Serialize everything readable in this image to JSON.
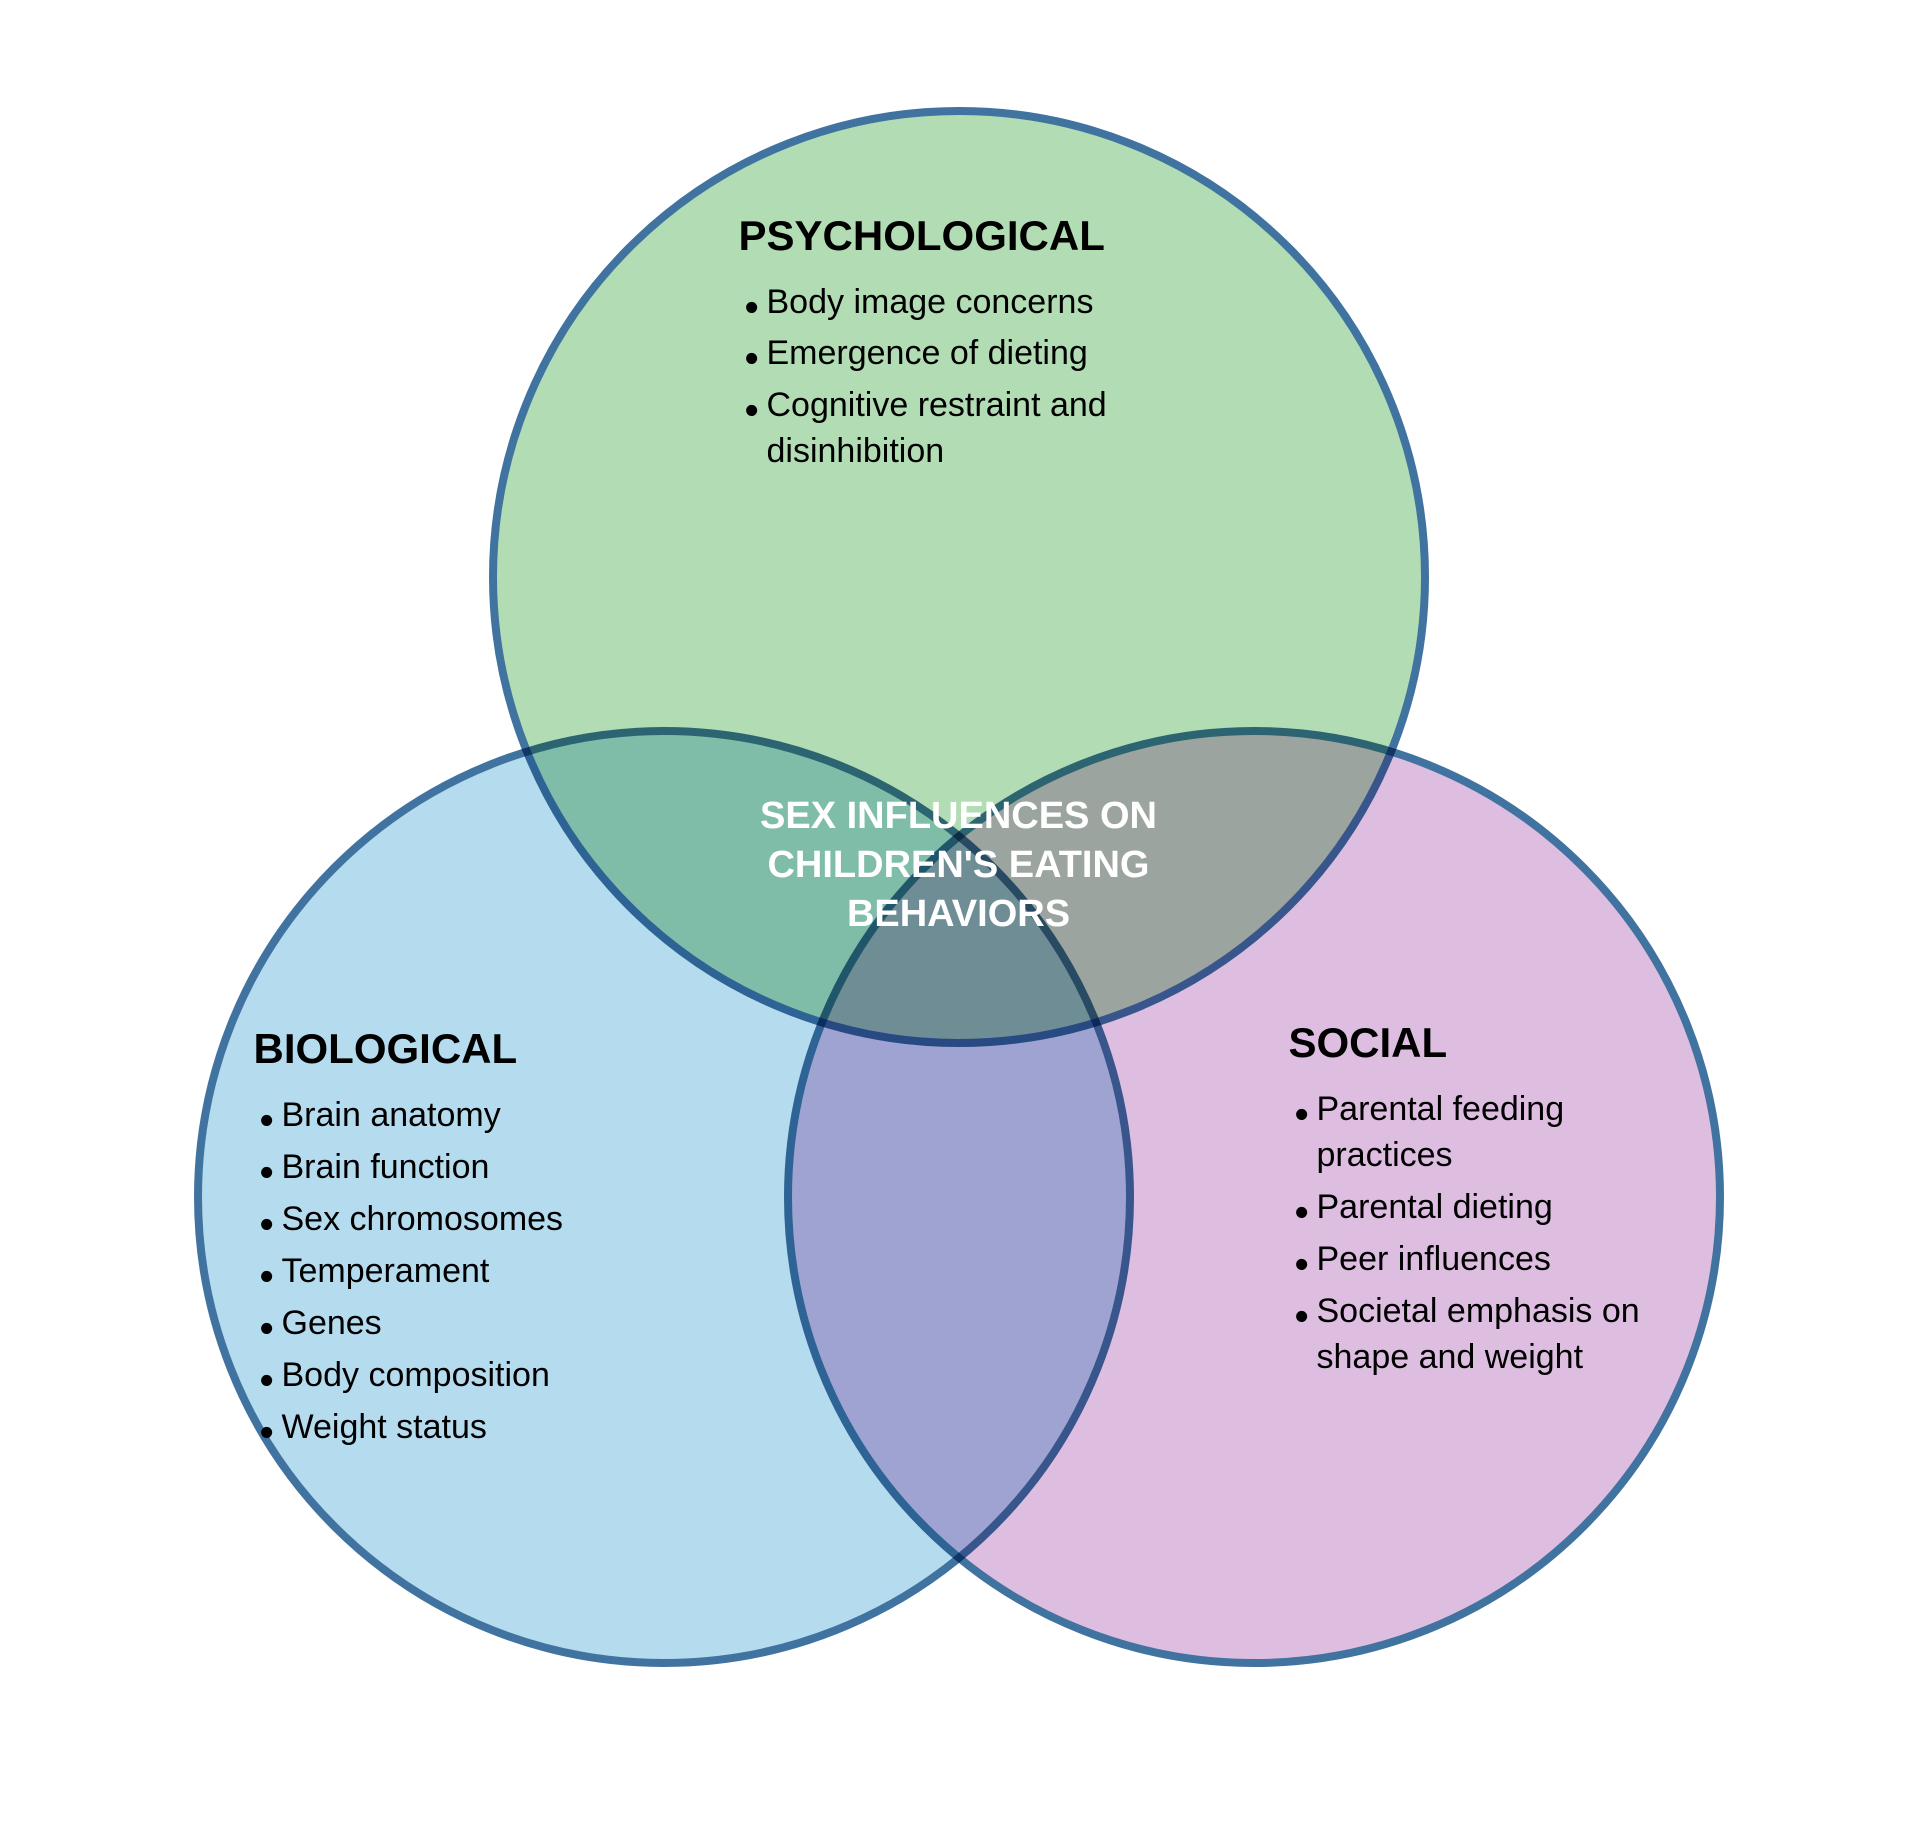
{
  "diagram": {
    "type": "venn-3",
    "background_color": "#ffffff",
    "circle_radius": 470,
    "circle_border_width": 8,
    "circle_border_color": "#1e5a8e",
    "circle_opacity": 0.85,
    "circles": {
      "top": {
        "fill_color": "#a5d6a7",
        "title": "PSYCHOLOGICAL",
        "items": [
          "Body image concerns",
          "Emergence of dieting",
          "Cognitive restraint and disinhibition"
        ]
      },
      "left": {
        "fill_color": "#a8d5ed",
        "title": "BIOLOGICAL",
        "items": [
          "Brain anatomy",
          "Brain function",
          "Sex chromosomes",
          "Temperament",
          "Genes",
          "Body composition",
          "Weight status"
        ]
      },
      "right": {
        "fill_color": "#d9b3db",
        "title": "SOCIAL",
        "items": [
          "Parental feeding practices",
          "Parental dieting",
          "Peer influences",
          "Societal emphasis on shape and weight"
        ]
      }
    },
    "center": {
      "text": "SEX INFLUENCES ON CHILDREN'S EATING BEHAVIORS",
      "text_color": "#ffffff",
      "fontsize": 38
    },
    "typography": {
      "title_fontsize": 42,
      "title_weight": "bold",
      "item_fontsize": 34,
      "font_family": "Arial, Helvetica, sans-serif"
    }
  }
}
